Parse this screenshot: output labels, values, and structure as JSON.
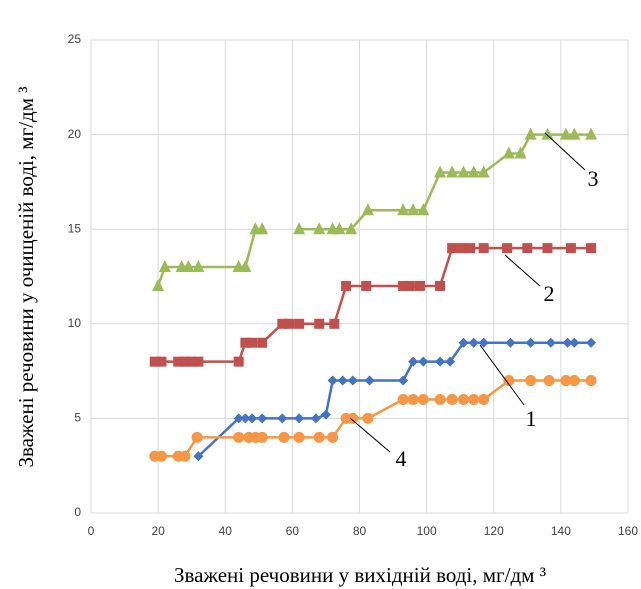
{
  "chart_data": {
    "type": "line",
    "x_label": "Зважені речовини у вихідній воді, мг/дм ³",
    "y_label": "Зважені речовини  у очищеній воді, мг/дм ³",
    "xlim": [
      0,
      160
    ],
    "xticks": [
      0,
      20,
      40,
      60,
      80,
      100,
      120,
      140,
      160
    ],
    "ylim": [
      0,
      25
    ],
    "yticks": [
      0,
      5,
      10,
      15,
      20,
      25
    ],
    "grid": true,
    "annotations": [
      "3",
      "2",
      "1",
      "4"
    ],
    "series": [
      {
        "name": "1",
        "color": "#4472c4",
        "marker": "diamond",
        "x": [
          32,
          44,
          46,
          48,
          51,
          57,
          62,
          67,
          70,
          72,
          75,
          78,
          83,
          93,
          96,
          99,
          104,
          107,
          111,
          114,
          117,
          125,
          131,
          137,
          142,
          144,
          149
        ],
        "values": [
          3,
          5,
          5,
          5,
          5,
          5,
          5,
          5,
          5.2,
          7,
          7,
          7,
          7,
          7,
          8,
          8,
          8,
          8,
          9,
          9,
          9,
          9,
          9,
          9,
          9,
          9,
          9
        ]
      },
      {
        "name": "2",
        "color": "#c0504d",
        "marker": "square",
        "x": [
          19,
          21,
          26,
          28,
          30,
          32,
          44,
          46,
          48,
          51,
          57,
          59,
          62,
          68,
          72.5,
          76,
          82,
          93,
          95,
          98,
          104,
          107.6,
          110.5,
          113,
          117,
          124,
          130,
          136,
          143,
          149
        ],
        "values": [
          8,
          8,
          8,
          8,
          8,
          8,
          8,
          9,
          9,
          9,
          10,
          10,
          10,
          10,
          10,
          12,
          12,
          12,
          12,
          12,
          12,
          14,
          14,
          14,
          14,
          14,
          14,
          14,
          14,
          14
        ]
      },
      {
        "name": "3",
        "color": "#9bbb59",
        "marker": "triangle",
        "x": [
          20,
          22,
          27,
          29,
          32,
          44,
          46,
          49,
          51,
          56,
          62,
          68,
          72,
          74,
          77.5,
          82.5,
          93,
          96,
          99,
          104,
          107.6,
          111,
          114,
          117,
          124.5,
          128,
          131,
          136,
          141.5,
          144,
          149
        ],
        "values": [
          12,
          13,
          13,
          13,
          13,
          13,
          13,
          15,
          15,
          null,
          15,
          15,
          15,
          15,
          15,
          16,
          16,
          16,
          16,
          18,
          18,
          18,
          18,
          18,
          19,
          19,
          20,
          20,
          20,
          20,
          20
        ]
      },
      {
        "name": "4",
        "color": "#f79646",
        "marker": "circle",
        "x": [
          19,
          21,
          26,
          28,
          31.6,
          44,
          47,
          49,
          51,
          57.5,
          62,
          68,
          72,
          76,
          78,
          82.5,
          93,
          96,
          99,
          104,
          107.6,
          111,
          114,
          117,
          124.5,
          131,
          136.5,
          141.5,
          144,
          149
        ],
        "values": [
          3,
          3,
          3,
          3,
          4,
          4,
          4,
          4,
          4,
          4,
          4,
          4,
          4,
          5,
          5,
          5,
          6,
          6,
          6,
          6,
          6,
          6,
          6,
          6,
          7,
          7,
          7,
          7,
          7,
          7
        ]
      }
    ]
  }
}
